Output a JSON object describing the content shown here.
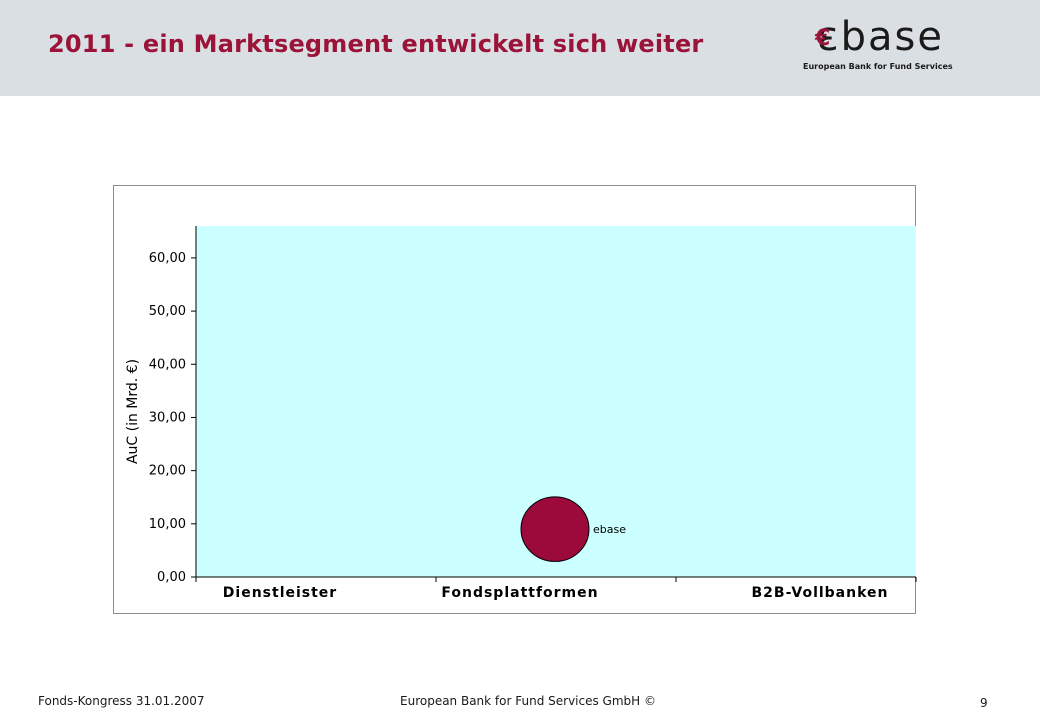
{
  "header": {
    "title": "2011 - ein Marktsegment entwickelt sich weiter"
  },
  "logo": {
    "euro": "€",
    "word": "base",
    "tagline": "European Bank for Fund Services"
  },
  "chart_data": {
    "type": "scatter",
    "bubble": true,
    "title": "",
    "xlabel": "",
    "ylabel": "AuC (in Mrd. €)",
    "ylim": [
      0,
      66
    ],
    "yticks": [
      0,
      10,
      20,
      30,
      40,
      50,
      60
    ],
    "ytick_labels": [
      "0,00",
      "10,00",
      "20,00",
      "30,00",
      "40,00",
      "50,00",
      "60,00"
    ],
    "categories": [
      "Dienstleister",
      "Fondsplattformen",
      "B2B-Vollbanken"
    ],
    "plot_background": "#ccffff",
    "grid": false,
    "legend": "none",
    "series": [
      {
        "points": [
          {
            "category_position": 1.5,
            "y": 9.0,
            "label": "ebase",
            "color": "#9b0a3a",
            "relative_size": 1
          }
        ]
      }
    ]
  },
  "footer": {
    "event": "Fonds-Kongress 31.01.2007",
    "company": "European Bank for Fund Services GmbH ©",
    "page": "9"
  }
}
